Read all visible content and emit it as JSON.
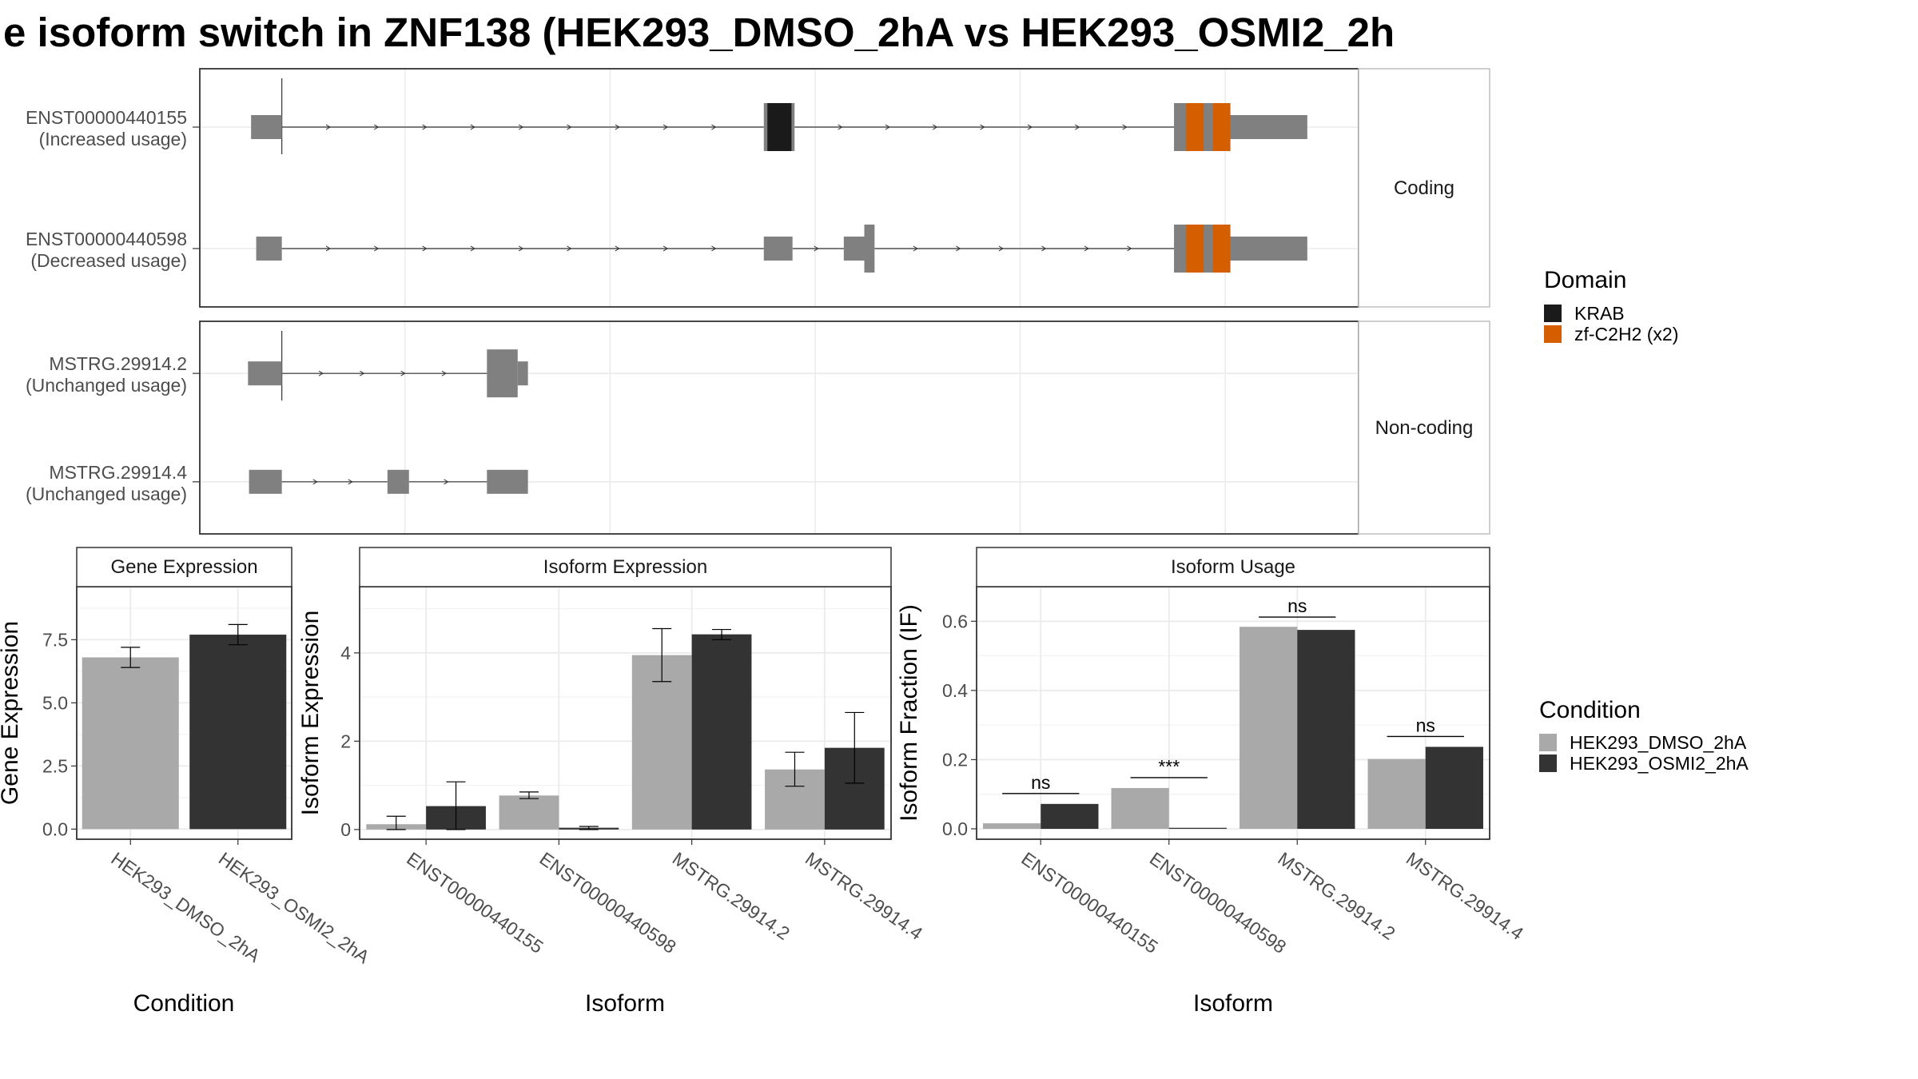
{
  "chart_data": {
    "title": "e isoform switch in ZNF138 (HEK293_DMSO_2hA vs HEK293_OSMI2_2h",
    "colors": {
      "exon": "#808080",
      "krab": "#1a1a1a",
      "zf": "#d55e00",
      "dmso": "#a9a9a9",
      "osmi": "#333333",
      "grid": "#ebebeb",
      "panel_border": "#333333",
      "strip_border": "#bfbfbf"
    },
    "structure": {
      "type": "isoform-structure",
      "groups": [
        {
          "label": "Coding",
          "isoforms": [
            {
              "label_id": "ENST00000440155",
              "label_usage": "(Increased usage)",
              "exons": [
                [
                  0.05,
                  0.08,
                  "thin"
                ],
                [
                  0.55,
                  0.58,
                  "thick"
                ],
                [
                  0.95,
                  1.0,
                  "thick"
                ],
                [
                  1.0,
                  1.08,
                  "thin"
                ]
              ],
              "domains": [
                {
                  "name": "KRAB",
                  "start": 0.5535,
                  "end": 0.577
                },
                {
                  "name": "zf-C2H2 (x2)",
                  "start": 0.962,
                  "end": 0.979
                },
                {
                  "name": "zf-C2H2 (x2)",
                  "start": 0.988,
                  "end": 1.005
                }
              ]
            },
            {
              "label_id": "ENST00000440598",
              "label_usage": "(Decreased usage)",
              "exons": [
                [
                  0.055,
                  0.08,
                  "thin"
                ],
                [
                  0.55,
                  0.578,
                  "thin"
                ],
                [
                  0.628,
                  0.648,
                  "thin"
                ],
                [
                  0.648,
                  0.658,
                  "thick"
                ],
                [
                  0.95,
                  1.0,
                  "thick"
                ],
                [
                  1.0,
                  1.08,
                  "thin"
                ]
              ],
              "domains": [
                {
                  "name": "zf-C2H2 (x2)",
                  "start": 0.962,
                  "end": 0.979
                },
                {
                  "name": "zf-C2H2 (x2)",
                  "start": 0.988,
                  "end": 1.005
                }
              ]
            }
          ]
        },
        {
          "label": "Non-coding",
          "isoforms": [
            {
              "label_id": "MSTRG.29914.2",
              "label_usage": "(Unchanged usage)",
              "exons": [
                [
                  0.047,
                  0.08,
                  "thin"
                ],
                [
                  0.28,
                  0.31,
                  "thick"
                ],
                [
                  0.31,
                  0.32,
                  "thin"
                ]
              ],
              "domains": []
            },
            {
              "label_id": "MSTRG.29914.4",
              "label_usage": "(Unchanged usage)",
              "exons": [
                [
                  0.048,
                  0.08,
                  "thin"
                ],
                [
                  0.183,
                  0.204,
                  "thin"
                ],
                [
                  0.28,
                  0.32,
                  "thin"
                ]
              ],
              "domains": []
            }
          ]
        }
      ],
      "legend": {
        "title": "Domain",
        "items": [
          "KRAB",
          "zf-C2H2 (x2)"
        ]
      }
    },
    "gene_expression": {
      "type": "bar",
      "strip": "Gene Expression",
      "xlabel": "Condition",
      "ylabel": "Gene Expression",
      "ylim": [
        -0.4,
        9.6
      ],
      "yticks": [
        "0.0",
        "2.5",
        "5.0",
        "7.5"
      ],
      "categories": [
        "HEK293_DMSO_2hA",
        "HEK293_OSMI2_2hA"
      ],
      "values": [
        6.8,
        7.7
      ],
      "errors": [
        [
          6.4,
          7.2
        ],
        [
          7.3,
          8.1
        ]
      ]
    },
    "isoform_expression": {
      "type": "bar",
      "strip": "Isoform Expression",
      "xlabel": "Isoform",
      "ylabel": "Isoform Expression",
      "ylim": [
        -0.22,
        5.5
      ],
      "yticks": [
        "0",
        "2",
        "4"
      ],
      "categories": [
        "ENST00000440155",
        "ENST00000440598",
        "MSTRG.29914.2",
        "MSTRG.29914.4"
      ],
      "series": [
        {
          "name": "HEK293_DMSO_2hA",
          "values": [
            0.12,
            0.77,
            3.95,
            1.36
          ],
          "errors": [
            [
              0.0,
              0.3
            ],
            [
              0.7,
              0.85
            ],
            [
              3.35,
              4.55
            ],
            [
              0.98,
              1.75
            ]
          ]
        },
        {
          "name": "HEK293_OSMI2_2hA",
          "values": [
            0.53,
            0.04,
            4.42,
            1.85
          ],
          "errors": [
            [
              0.0,
              1.08
            ],
            [
              0.0,
              0.07
            ],
            [
              4.3,
              4.53
            ],
            [
              1.05,
              2.65
            ]
          ]
        }
      ]
    },
    "isoform_usage": {
      "type": "bar",
      "strip": "Isoform Usage",
      "xlabel": "Isoform",
      "ylabel": "Isoform Fraction (IF)",
      "ylim": [
        -0.03,
        0.7
      ],
      "yticks": [
        "0.0",
        "0.2",
        "0.4",
        "0.6"
      ],
      "categories": [
        "ENST00000440155",
        "ENST00000440598",
        "MSTRG.29914.2",
        "MSTRG.29914.4"
      ],
      "series": [
        {
          "name": "HEK293_DMSO_2hA",
          "values": [
            0.016,
            0.118,
            0.584,
            0.202
          ]
        },
        {
          "name": "HEK293_OSMI2_2hA",
          "values": [
            0.072,
            0.003,
            0.575,
            0.237
          ]
        }
      ],
      "significance": [
        "ns",
        "***",
        "ns",
        "ns"
      ],
      "sig_y": [
        0.102,
        0.148,
        0.612,
        0.267
      ]
    },
    "condition_legend": {
      "title": "Condition",
      "items": [
        "HEK293_DMSO_2hA",
        "HEK293_OSMI2_2hA"
      ]
    }
  }
}
